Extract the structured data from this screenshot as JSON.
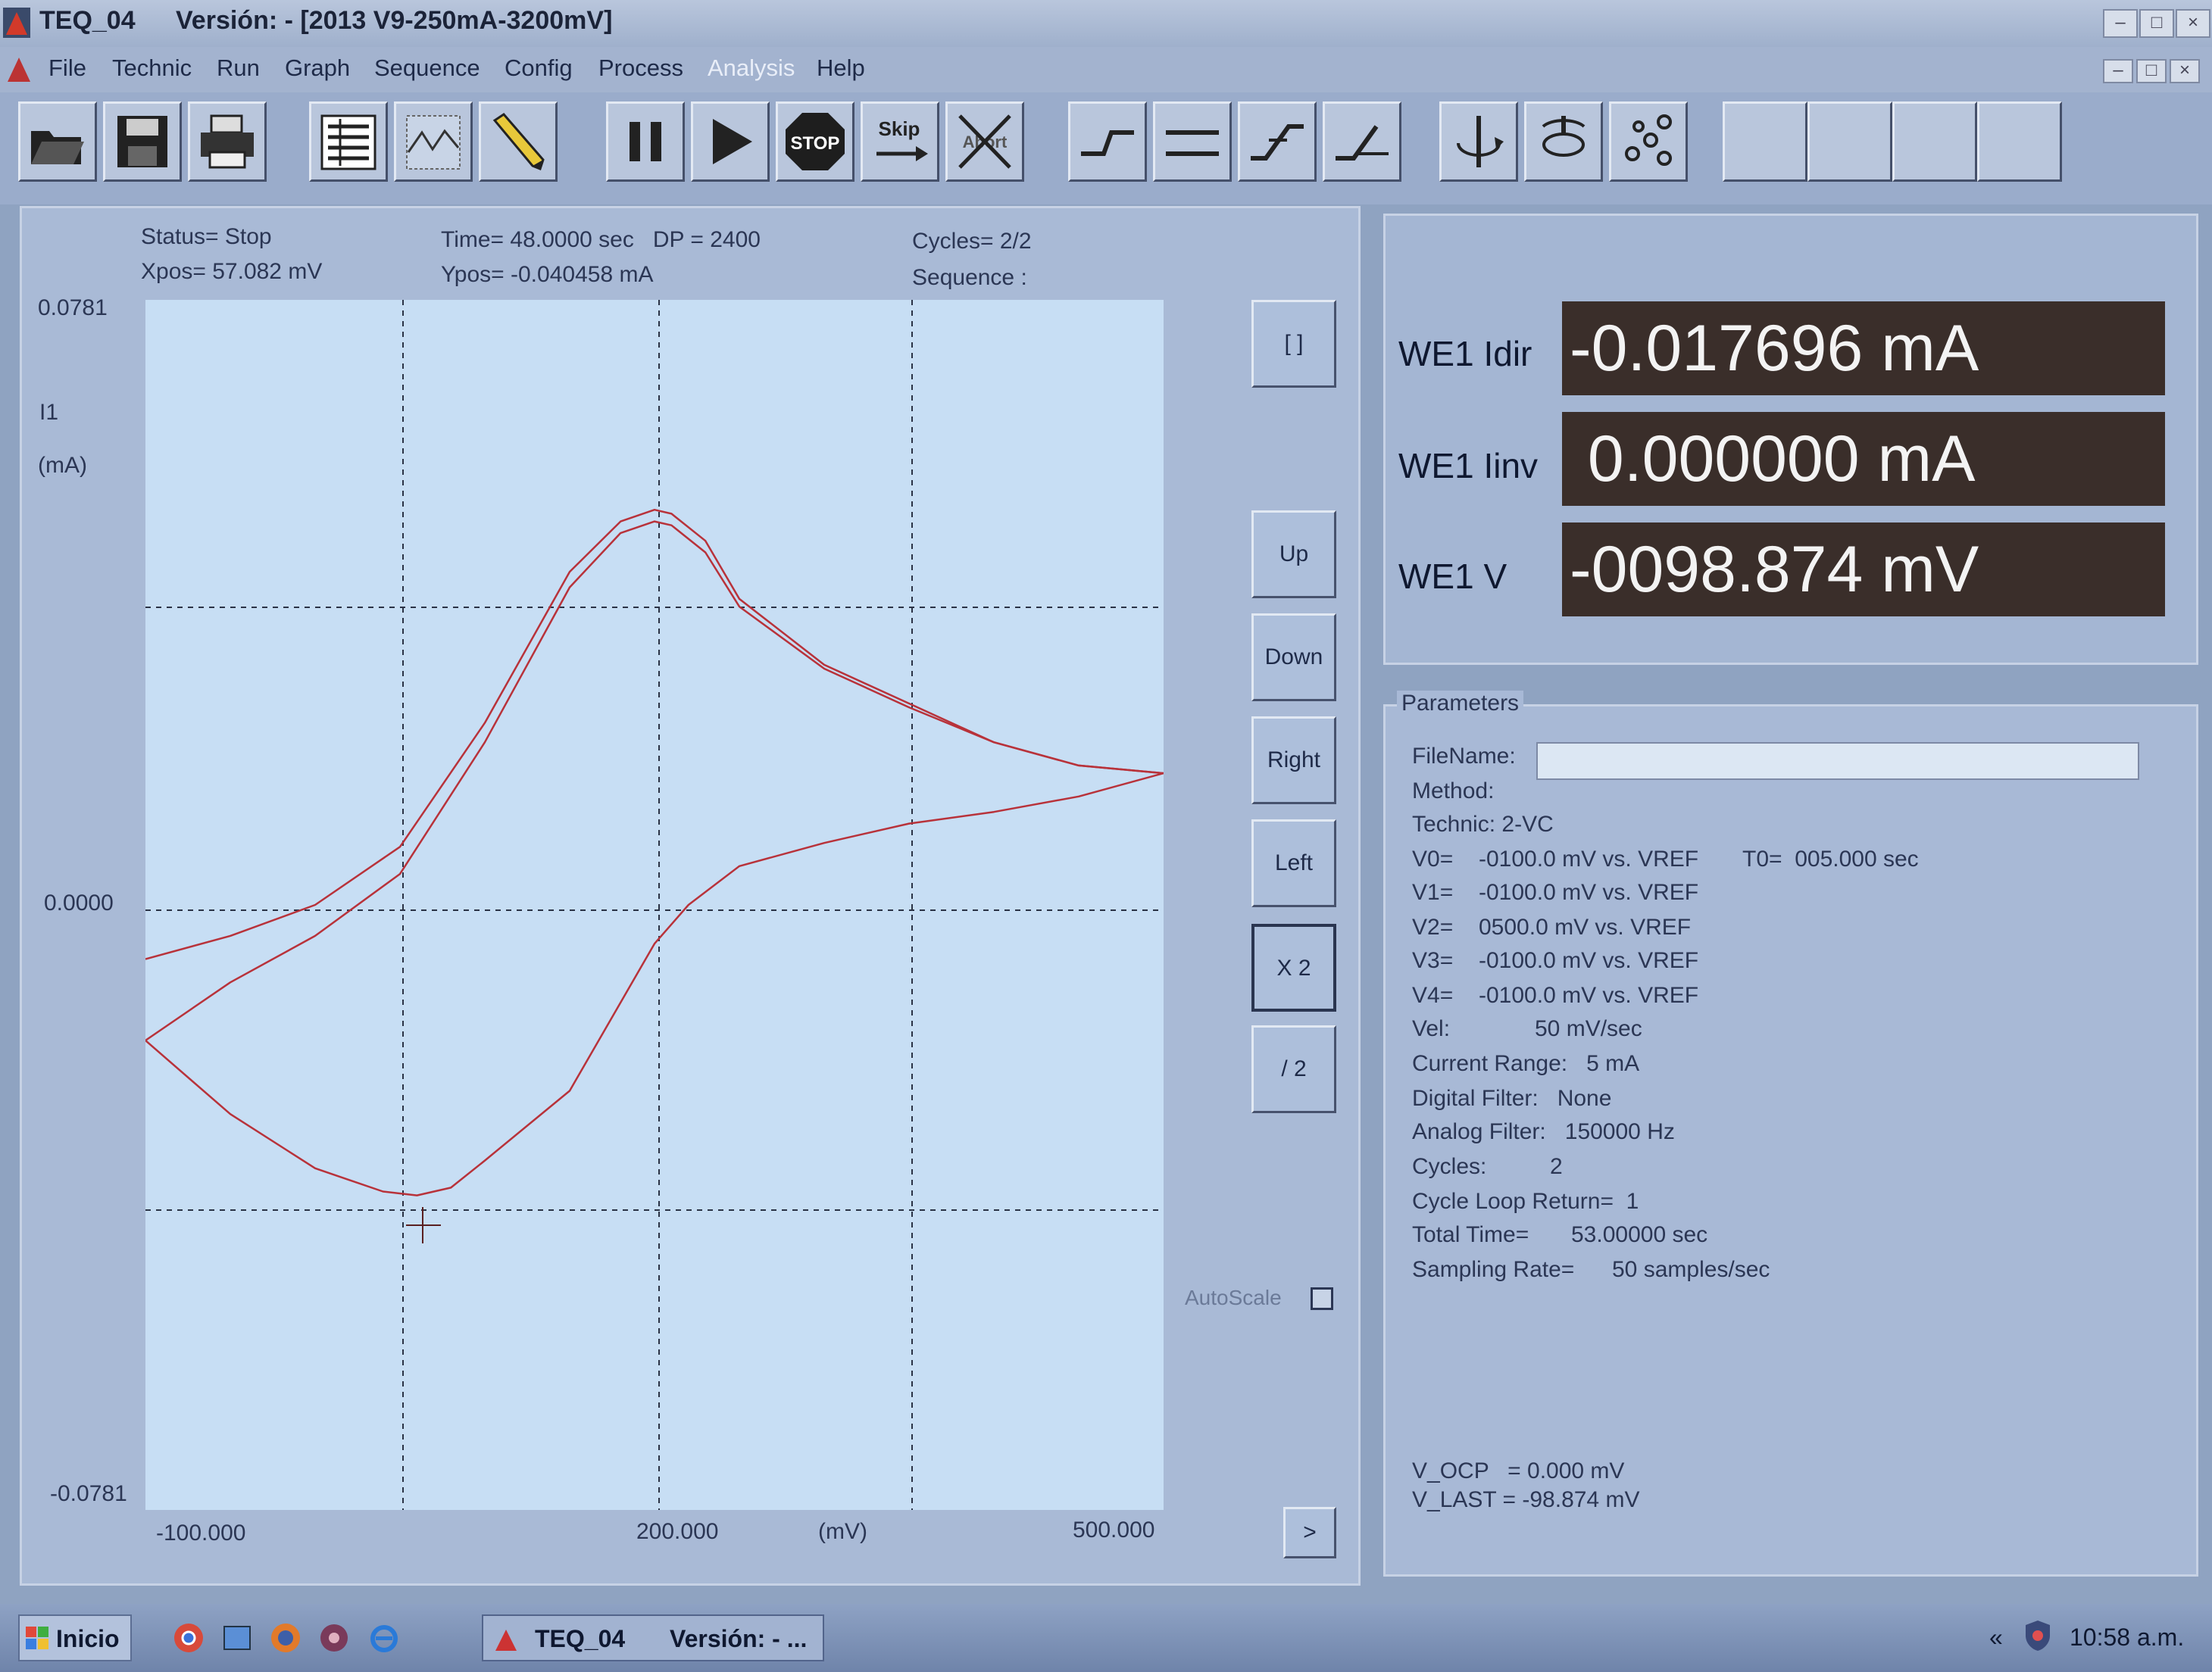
{
  "window": {
    "app_name": "TEQ_04",
    "title_version": "Versión: - [2013 V9-250mA-3200mV]"
  },
  "menu": [
    "File",
    "Technic",
    "Run",
    "Graph",
    "Sequence",
    "Config",
    "Process",
    "Analysis",
    "Help"
  ],
  "toolbar": {
    "icons": [
      "open-icon",
      "save-icon",
      "print-icon",
      "list-view-icon",
      "graph-view-icon",
      "pencil-icon",
      "pause-icon",
      "play-icon",
      "stop-icon",
      "skip-icon",
      "abort-icon",
      "step-up-icon",
      "flat-icon",
      "ramp-icon",
      "ramp-down-icon",
      "electrode-icon",
      "rotate-icon",
      "network-icon"
    ],
    "stop_label": "STOP",
    "skip_label": "Skip",
    "abort_label": "Abort"
  },
  "status": {
    "status": "Status= Stop",
    "xpos": "Xpos= 57.082 mV",
    "time": "Time= 48.0000 sec   DP = 2400",
    "ypos": "Ypos= -0.040458 mA",
    "cycles": "Cycles= 2/2",
    "sequence": "Sequence :"
  },
  "axis": {
    "y_top": "0.0781",
    "y_mid": "0.0000",
    "y_bottom": "-0.0781",
    "y_name": "I1",
    "y_unit": "(mA)",
    "x_left": "-100.000",
    "x_mid": "200.000",
    "x_unit": "(mV)",
    "x_right": "500.000"
  },
  "side_buttons": {
    "zoom": "[  ]",
    "up": "Up",
    "down": "Down",
    "right": "Right",
    "left": "Left",
    "x2": "X 2",
    "div2": "/ 2",
    "next": ">",
    "autoscale": "AutoScale"
  },
  "readouts": [
    {
      "label": "WE1 Idir",
      "value": "-0.017696 mA"
    },
    {
      "label": "WE1 Iinv",
      "value": " 0.000000 mA"
    },
    {
      "label": "WE1 V",
      "value": "-0098.874 mV"
    }
  ],
  "parameters": {
    "title": "Parameters",
    "filename_label": "FileName:",
    "method_label": "Method:",
    "technic": "Technic: 2-VC",
    "v0_label": "V0=",
    "v0_value": "-0100.0 mV vs. VREF",
    "t0": "T0=  005.000 sec",
    "v1_label": "V1=",
    "v1_value": "-0100.0 mV vs. VREF",
    "v2_label": "V2=",
    "v2_value": "0500.0 mV vs. VREF",
    "v3_label": "V3=",
    "v3_value": "-0100.0 mV vs. VREF",
    "v4_label": "V4=",
    "v4_value": "-0100.0 mV vs. VREF",
    "vel_label": "Vel:",
    "vel_value": "50 mV/sec",
    "current_range": "Current Range:   5 mA",
    "digital_filter": "Digital Filter:   None",
    "analog_filter": "Analog Filter:   150000 Hz",
    "cycles_label": "Cycles:",
    "cycles_value": "2",
    "cycle_loop": "Cycle Loop Return=  1",
    "total_time_label": "Total Time=",
    "total_time_value": "53.00000 sec",
    "sampling_label": "Sampling Rate=",
    "sampling_value": "50 samples/sec",
    "v_ocp": "V_OCP   = 0.000 mV",
    "v_last": "V_LAST = -98.874 mV"
  },
  "taskbar": {
    "start": "Inicio",
    "task_name": "TEQ_04",
    "task_version": "Versión: - ...",
    "chevron": "«",
    "clock": "10:58 a.m."
  },
  "chart_data": {
    "type": "line",
    "xlabel": "(mV)",
    "ylabel": "I1 (mA)",
    "xlim": [
      -100,
      500
    ],
    "ylim": [
      -0.0781,
      0.0781
    ],
    "grid": true,
    "series": [
      {
        "x": [
          -100,
          -50,
          0,
          50,
          100,
          150,
          180,
          200,
          210,
          230,
          250,
          300,
          350,
          400,
          450,
          500
        ],
        "y": [
          -0.007,
          -0.004,
          0.0,
          0.0075,
          0.0235,
          0.043,
          0.0495,
          0.051,
          0.0505,
          0.047,
          0.0395,
          0.031,
          0.026,
          0.021,
          0.018,
          0.017
        ]
      },
      {
        "x": [
          -100,
          -50,
          0,
          50,
          100,
          150,
          180,
          200,
          210,
          230,
          250,
          300,
          350,
          400,
          450,
          500
        ],
        "y": [
          -0.0175,
          -0.01,
          -0.004,
          0.004,
          0.021,
          0.041,
          0.048,
          0.0495,
          0.049,
          0.0455,
          0.0385,
          0.0305,
          0.0255,
          0.021,
          0.018,
          0.017
        ]
      },
      {
        "x": [
          500,
          450,
          400,
          350,
          300,
          250,
          220,
          200,
          150,
          100,
          80,
          60,
          40,
          20,
          0,
          -50,
          -100
        ],
        "y": [
          0.017,
          0.014,
          0.012,
          0.0105,
          0.008,
          0.005,
          0.0,
          -0.005,
          -0.024,
          -0.033,
          -0.0365,
          -0.0375,
          -0.037,
          -0.0355,
          -0.034,
          -0.027,
          -0.0175
        ]
      }
    ]
  }
}
